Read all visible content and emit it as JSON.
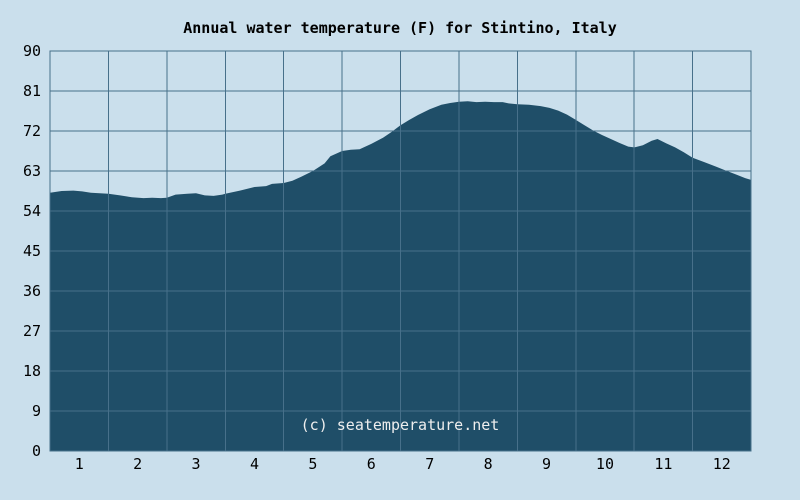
{
  "title": "Annual water temperature (F) for Stintino, Italy",
  "watermark": "(c) seatemperature.net",
  "colors": {
    "background": "#cadfec",
    "area_fill": "#1f4e68",
    "gridline": "#47708a",
    "text": "#000000",
    "watermark_text": "#eeeeee"
  },
  "chart_data": {
    "type": "area",
    "title": "Annual water temperature (F) for Stintino, Italy",
    "xlabel": "",
    "ylabel": "",
    "legend": "none",
    "grid": "on",
    "ylim": [
      0,
      90
    ],
    "yticks": [
      0,
      9,
      18,
      27,
      36,
      45,
      54,
      63,
      72,
      81,
      90
    ],
    "x_categories": [
      "1",
      "2",
      "3",
      "4",
      "5",
      "6",
      "7",
      "8",
      "9",
      "10",
      "11",
      "12"
    ],
    "monthly_values_f": [
      58.4,
      57.0,
      57.8,
      59.4,
      63.0,
      69.1,
      76.9,
      78.5,
      77.2,
      70.6,
      69.2,
      63.2
    ],
    "series": [
      {
        "name": "water-temperature-f",
        "month_x": [
          0.0,
          0.2,
          0.4,
          0.55,
          0.7,
          0.85,
          1.0,
          1.2,
          1.4,
          1.6,
          1.75,
          1.9,
          2.0,
          2.15,
          2.35,
          2.5,
          2.65,
          2.8,
          2.95,
          3.0,
          3.25,
          3.5,
          3.7,
          3.8,
          4.0,
          4.15,
          4.3,
          4.5,
          4.7,
          4.8,
          5.0,
          5.15,
          5.3,
          5.5,
          5.7,
          5.85,
          6.0,
          6.15,
          6.3,
          6.5,
          6.7,
          6.85,
          7.0,
          7.15,
          7.3,
          7.45,
          7.6,
          7.75,
          7.85,
          8.0,
          8.2,
          8.4,
          8.55,
          8.7,
          8.85,
          9.0,
          9.15,
          9.3,
          9.45,
          9.6,
          9.75,
          9.9,
          10.0,
          10.15,
          10.3,
          10.4,
          10.55,
          10.7,
          10.85,
          11.0,
          11.2,
          11.4,
          11.55,
          11.75,
          11.9,
          12.0
        ],
        "values": [
          58.1,
          58.5,
          58.6,
          58.4,
          58.1,
          58.0,
          57.9,
          57.5,
          57.1,
          56.9,
          57.0,
          56.9,
          57.0,
          57.7,
          57.9,
          58.0,
          57.5,
          57.4,
          57.7,
          57.9,
          58.6,
          59.4,
          59.6,
          60.1,
          60.3,
          60.8,
          61.7,
          63.0,
          64.7,
          66.3,
          67.5,
          67.8,
          67.9,
          69.1,
          70.5,
          71.8,
          73.3,
          74.5,
          75.6,
          76.9,
          77.9,
          78.3,
          78.6,
          78.7,
          78.5,
          78.6,
          78.5,
          78.5,
          78.2,
          78.0,
          77.9,
          77.6,
          77.2,
          76.6,
          75.7,
          74.5,
          73.3,
          72.1,
          71.1,
          70.2,
          69.3,
          68.5,
          68.3,
          68.8,
          69.8,
          70.2,
          69.2,
          68.3,
          67.2,
          66.0,
          65.0,
          64.0,
          63.2,
          62.2,
          61.4,
          61.0
        ]
      }
    ]
  }
}
